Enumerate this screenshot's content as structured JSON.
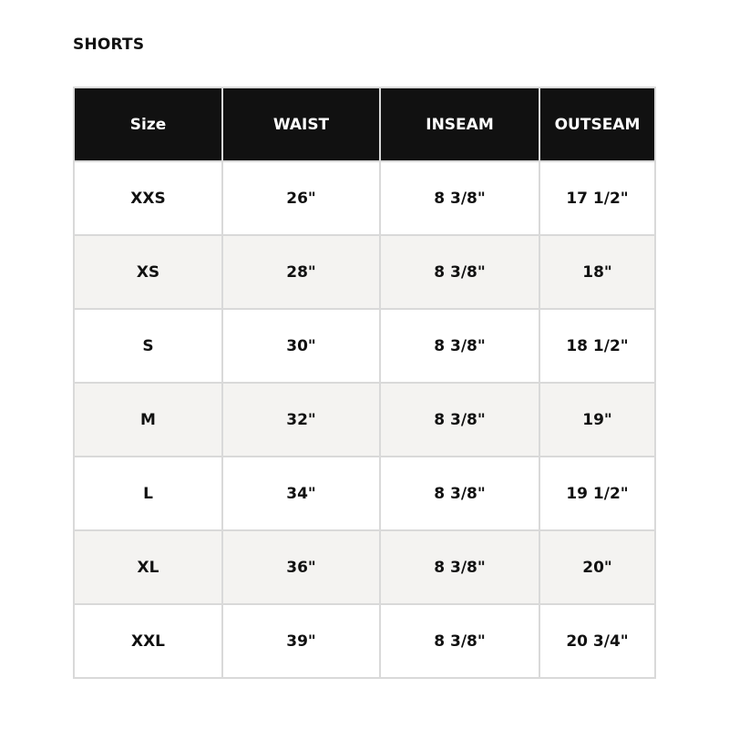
{
  "title": "SHORTS",
  "table": {
    "headers": [
      "Size",
      "WAIST",
      "INSEAM",
      "OUTSEAM"
    ],
    "rows": [
      [
        "XXS",
        "26\"",
        "8 3/8\"",
        "17 1/2\""
      ],
      [
        "XS",
        "28\"",
        "8 3/8\"",
        "18\""
      ],
      [
        "S",
        "30\"",
        "8 3/8\"",
        "18 1/2\""
      ],
      [
        "M",
        "32\"",
        "8 3/8\"",
        "19\""
      ],
      [
        "L",
        "34\"",
        "8 3/8\"",
        "19 1/2\""
      ],
      [
        "XL",
        "36\"",
        "8 3/8\"",
        "20\""
      ],
      [
        "XXL",
        "39\"",
        "8 3/8\"",
        "20 3/4\""
      ]
    ]
  },
  "colors": {
    "header_bg": "#111111",
    "alt_row_bg": "#f4f3f1",
    "border": "#d9d9d9"
  }
}
